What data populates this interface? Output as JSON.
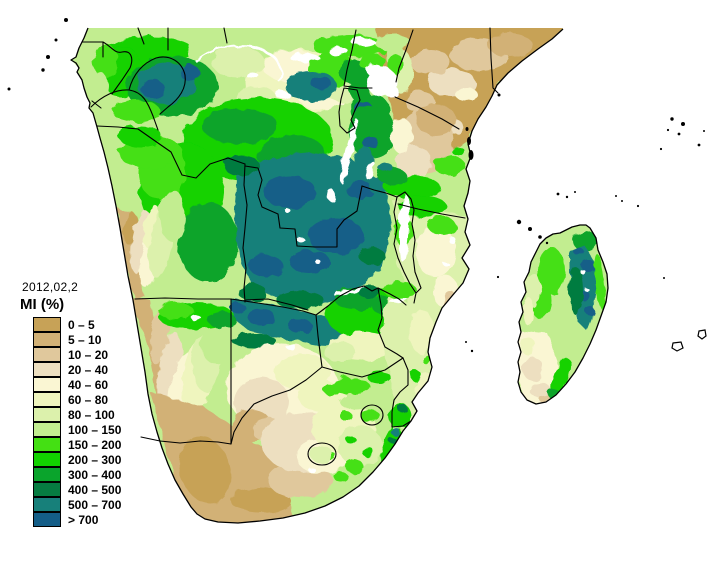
{
  "map": {
    "date_label": "2012,02,2",
    "legend_title": "MI (%)",
    "ocean_color": "#ffffff",
    "no_data_color": "#ffffff",
    "border_color": "#000000"
  },
  "legend": {
    "entries": [
      {
        "label": "0 – 5",
        "color": "#C7A257"
      },
      {
        "label": "5 – 10",
        "color": "#D2B176"
      },
      {
        "label": "10 – 20",
        "color": "#E0C89C"
      },
      {
        "label": "20 – 40",
        "color": "#EDDFC0"
      },
      {
        "label": "40 – 60",
        "color": "#FAF6D3"
      },
      {
        "label": "60 – 80",
        "color": "#EFF5BE"
      },
      {
        "label": "80 – 100",
        "color": "#DCF1AC"
      },
      {
        "label": "100 – 150",
        "color": "#C2ED90"
      },
      {
        "label": "150 – 200",
        "color": "#44E013"
      },
      {
        "label": "200 – 300",
        "color": "#12D200"
      },
      {
        "label": "300 – 400",
        "color": "#0AA42C"
      },
      {
        "label": "400 – 500",
        "color": "#067C41"
      },
      {
        "label": "500 – 700",
        "color": "#17807A"
      },
      {
        "label": "> 700",
        "color": "#145E88"
      }
    ]
  }
}
